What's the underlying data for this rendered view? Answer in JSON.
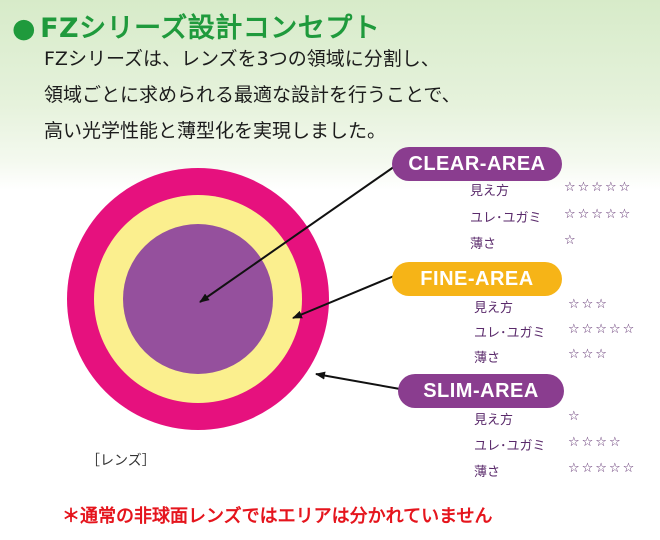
{
  "title": "FZシリーズ設計コンセプト",
  "title_bullet": "●",
  "description": [
    "FZシリーズは、レンズを3つの領域に分割し、",
    "領域ごとに求められる最適な設計を行うことで、",
    "高い光学性能と薄型化を実現しました。"
  ],
  "colors": {
    "title": "#1f9a3c",
    "outer_ring": "#e6117e",
    "middle_ring": "#fbef8e",
    "center": "#95509d",
    "clear_pill": "#8a3d8f",
    "fine_pill": "#f6b417",
    "slim_pill": "#8a3d8f",
    "note": "#e5151d"
  },
  "areas": [
    {
      "name": "CLEAR-AREA",
      "attributes": [
        {
          "label": "見え方",
          "stars": "☆☆☆☆☆",
          "rating": 5
        },
        {
          "label": "ユレ･ユガミ",
          "stars": "☆☆☆☆☆",
          "rating": 5
        },
        {
          "label": "薄さ",
          "stars": "☆",
          "rating": 1
        }
      ]
    },
    {
      "name": "FINE-AREA",
      "attributes": [
        {
          "label": "見え方",
          "stars": "☆☆☆",
          "rating": 3
        },
        {
          "label": "ユレ･ユガミ",
          "stars": "☆☆☆☆☆",
          "rating": 5
        },
        {
          "label": "薄さ",
          "stars": "☆☆☆",
          "rating": 3
        }
      ]
    },
    {
      "name": "SLIM-AREA",
      "attributes": [
        {
          "label": "見え方",
          "stars": "☆",
          "rating": 1
        },
        {
          "label": "ユレ･ユガミ",
          "stars": "☆☆☆☆",
          "rating": 4
        },
        {
          "label": "薄さ",
          "stars": "☆☆☆☆☆",
          "rating": 5
        }
      ]
    }
  ],
  "lens_label": "［レンズ］",
  "note": "＊通常の非球面レンズではエリアは分かれていません"
}
